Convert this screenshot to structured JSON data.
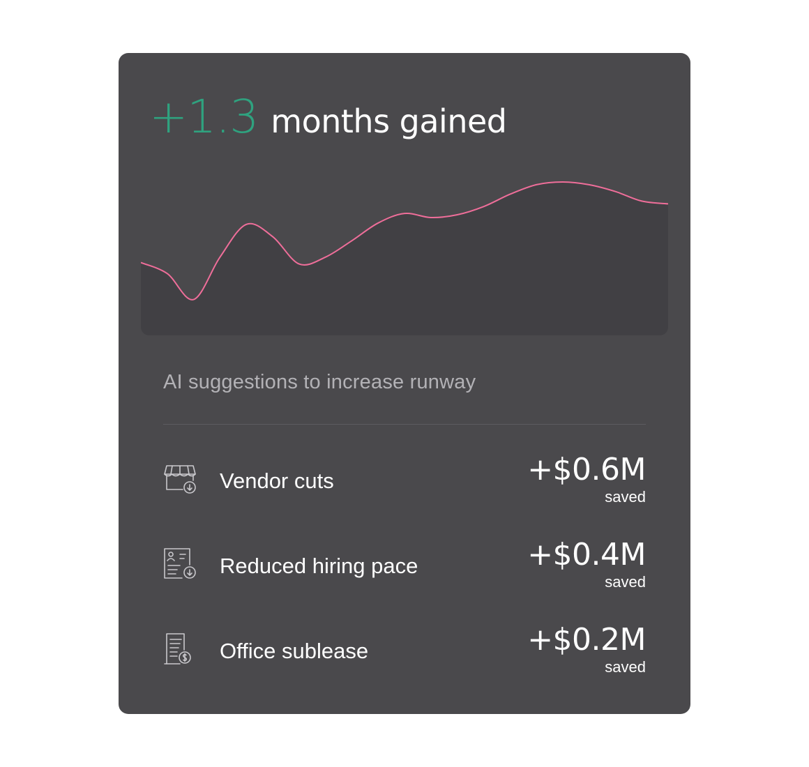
{
  "summary": {
    "delta": "+1.3",
    "suffix": "months gained",
    "delta_color": "#2fa27f"
  },
  "chart_data": {
    "type": "area",
    "line_color": "#ef6e9a",
    "fill_color": "#414044",
    "x": [
      0,
      0.5,
      1,
      1.5,
      2,
      2.5,
      3,
      3.5,
      4,
      4.5,
      5,
      5.5,
      6,
      6.5,
      7,
      7.5,
      8,
      8.5,
      9,
      9.5,
      10
    ],
    "y": [
      0.41,
      0.33,
      0.14,
      0.45,
      0.69,
      0.6,
      0.4,
      0.45,
      0.57,
      0.7,
      0.77,
      0.74,
      0.76,
      0.82,
      0.91,
      0.98,
      1.0,
      0.98,
      0.93,
      0.86,
      0.84
    ],
    "grid": false,
    "legend": "none"
  },
  "suggestions": {
    "title": "AI suggestions to increase runway",
    "items": [
      {
        "icon": "storefront-download-icon",
        "label": "Vendor cuts",
        "amount": "+$0.6M",
        "note": "saved"
      },
      {
        "icon": "profile-document-download-icon",
        "label": "Reduced hiring pace",
        "amount": "+$0.4M",
        "note": "saved"
      },
      {
        "icon": "receipt-dollar-icon",
        "label": "Office sublease",
        "amount": "+$0.2M",
        "note": "saved"
      }
    ]
  }
}
